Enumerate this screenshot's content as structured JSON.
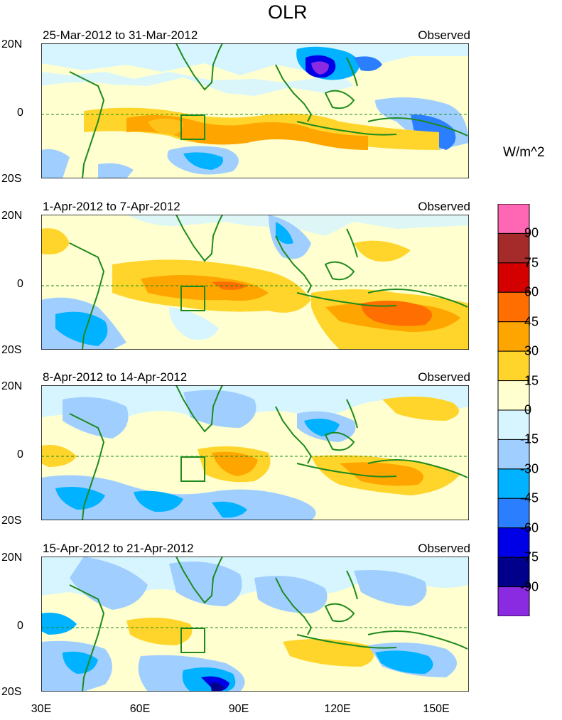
{
  "title": "OLR",
  "units": "W/m^2",
  "panels": [
    {
      "date_range": "25-Mar-2012 to 31-Mar-2012",
      "tag": "Observed"
    },
    {
      "date_range": "1-Apr-2012 to 7-Apr-2012",
      "tag": "Observed"
    },
    {
      "date_range": "8-Apr-2012 to 14-Apr-2012",
      "tag": "Observed"
    },
    {
      "date_range": "15-Apr-2012 to 21-Apr-2012",
      "tag": "Observed"
    }
  ],
  "y_axis": {
    "top": "20N",
    "mid": "0",
    "bottom": "20S"
  },
  "x_axis": [
    "30E",
    "60E",
    "90E",
    "120E",
    "150E"
  ],
  "colorbar": {
    "labels": [
      "90",
      "75",
      "60",
      "45",
      "30",
      "15",
      "0",
      "-15",
      "-30",
      "-45",
      "-60",
      "-75",
      "-90"
    ],
    "colors": [
      "#ff66b3",
      "#a52a2a",
      "#d40000",
      "#ff6e00",
      "#ffa500",
      "#ffd52b",
      "#ffffd0",
      "#d6f5ff",
      "#a0cfff",
      "#00b2ff",
      "#2b7fff",
      "#0000e6",
      "#00008b",
      "#8a2be2"
    ]
  },
  "colors": {
    "land_outline": "#1e8a1e",
    "equator": "#1e8a1e"
  }
}
